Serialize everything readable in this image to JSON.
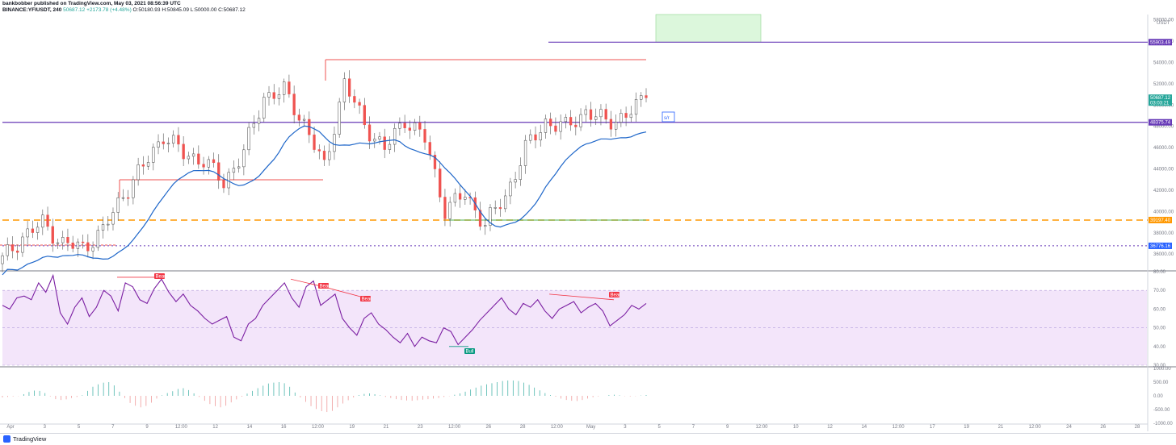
{
  "header": {
    "line1": "bankbobber published on TradingView.com, May 03, 2021 08:56:39 UTC",
    "symbol": "BINANCE:YFIUSDT, 240",
    "last": "50687.12",
    "change": "+2173.78 (+4.48%)",
    "o": "O:50180.93",
    "h": "H:50845.09",
    "l": "L:50000.00",
    "c": "C:50687.12"
  },
  "footer": {
    "brand": "TradingView"
  },
  "chart_data": {
    "type": "line",
    "series": [
      {
        "x": [
          "Apr 1",
          "Apr 2",
          "Apr 3",
          "Apr 4",
          "Apr 5",
          "Apr 6",
          "Apr 7",
          "Apr 8",
          "Apr 9",
          "Apr 10",
          "Apr 11",
          "Apr 12",
          "Apr 13",
          "Apr 14",
          "Apr 15",
          "Apr 16",
          "Apr 17",
          "Apr 18",
          "Apr 19",
          "Apr 20",
          "Apr 21",
          "Apr 22",
          "Apr 23",
          "Apr 24",
          "Apr 25",
          "Apr 26",
          "Apr 27",
          "Apr 28",
          "Apr 29",
          "Apr 30",
          "May 1",
          "May 2",
          "May 3"
        ],
        "close": [
          35500,
          37600,
          38900,
          37000,
          36600,
          38200,
          41600,
          44200,
          47200,
          45400,
          44800,
          42700,
          45600,
          50800,
          51300,
          48300,
          44100,
          52100,
          48200,
          45800,
          48700,
          46800,
          40200,
          41600,
          38800,
          41400,
          45900,
          48400,
          47900,
          49400,
          48400,
          49000,
          50687
        ]
      }
    ],
    "overlays": [
      {
        "type": "moving average",
        "color": "#1e66c9"
      },
      {
        "type": "horizontal",
        "value": 55903.49,
        "color": "#673ab7"
      },
      {
        "type": "horizontal",
        "value": 48375.74,
        "color": "#673ab7"
      },
      {
        "type": "horizontal",
        "value": 39197.4,
        "color": "#ff9800",
        "style": "dashed"
      },
      {
        "type": "horizontal",
        "value": 36776.16,
        "color": "#673ab7",
        "style": "dotted"
      },
      {
        "type": "box",
        "y": [
          55903.49,
          58500
        ],
        "x": [
          "May 4",
          "May 7"
        ],
        "color": "#c8f5c8"
      },
      {
        "type": "note",
        "text": "s/r"
      }
    ],
    "ylim": [
      34500,
      58500
    ],
    "price_ticks": [
      36000,
      38000,
      40000,
      42000,
      44000,
      46000,
      48000,
      50000,
      52000,
      54000,
      56000,
      58000
    ],
    "price_tick_labels": [
      "36000.00",
      "38000.00",
      "40000.00",
      "42000.00",
      "44000.00",
      "46000.00",
      "48000.00",
      "50000.00",
      "52000.00",
      "54000.00",
      "56000.00",
      "58000.00"
    ],
    "price_labels": [
      {
        "text": "55903.49",
        "value": 55903.49,
        "color": "#673ab7"
      },
      {
        "text": "50687.12",
        "value": 50687.12,
        "color": "#26a69a",
        "sub": "03:03:21"
      },
      {
        "text": "48375.74",
        "value": 48375.74,
        "color": "#673ab7"
      },
      {
        "text": "39197.40",
        "value": 39197.4,
        "color": "#ff9800"
      },
      {
        "text": "36776.16",
        "value": 36776.16,
        "color": "#2962ff"
      }
    ],
    "currency": "USDT",
    "x_ticks": [
      "Apr",
      "3",
      "5",
      "7",
      "9",
      "12:00",
      "12",
      "14",
      "16",
      "12:00",
      "19",
      "21",
      "23",
      "12:00",
      "26",
      "28",
      "12:00",
      "May",
      "3",
      "5",
      "7",
      "9",
      "12:00",
      "10",
      "12",
      "14",
      "12:00",
      "17",
      "19",
      "21",
      "12:00",
      "24",
      "26",
      "28"
    ],
    "rsi": {
      "values": [
        62,
        60,
        66,
        67,
        65,
        74,
        69,
        78,
        58,
        52,
        61,
        66,
        56,
        61,
        70,
        67,
        59,
        74,
        72,
        65,
        63,
        71,
        76,
        69,
        64,
        68,
        62,
        59,
        55,
        52,
        54,
        56,
        45,
        43,
        52,
        55,
        62,
        66,
        70,
        74,
        66,
        61,
        72,
        75,
        62,
        65,
        68,
        55,
        50,
        46,
        55,
        58,
        52,
        49,
        45,
        42,
        47,
        40,
        45,
        43,
        42,
        50,
        48,
        41,
        45,
        49,
        54,
        58,
        62,
        66,
        60,
        57,
        63,
        61,
        65,
        59,
        55,
        60,
        62,
        64,
        58,
        61,
        63,
        59,
        51,
        54,
        57,
        62,
        60,
        63
      ],
      "ylim": [
        30,
        80
      ],
      "band": [
        30,
        70
      ],
      "tick_labels": [
        "80.00",
        "70.00",
        "60.00",
        "50.00",
        "40.00",
        "30.00"
      ],
      "signals": [
        {
          "text": "Bear",
          "color": "#f23645"
        },
        {
          "text": "Bear",
          "color": "#f23645"
        },
        {
          "text": "Bear",
          "color": "#f23645"
        },
        {
          "text": "Bear",
          "color": "#f23645"
        },
        {
          "text": "Bull",
          "color": "#089981"
        }
      ]
    },
    "osc": {
      "values": [
        -60,
        -40,
        -20,
        -10,
        60,
        140,
        190,
        180,
        100,
        -20,
        -120,
        -150,
        -130,
        -80,
        -40,
        20,
        180,
        330,
        420,
        480,
        500,
        380,
        150,
        -80,
        -260,
        -360,
        -420,
        -370,
        -250,
        -100,
        20,
        100,
        170,
        250,
        280,
        210,
        90,
        -40,
        -180,
        -300,
        -380,
        -420,
        -360,
        -240,
        -130,
        -30,
        80,
        180,
        280,
        370,
        450,
        480,
        500,
        460,
        330,
        120,
        -60,
        -220,
        -380,
        -480,
        -560,
        -590,
        -550,
        -420,
        -280,
        -160,
        -60,
        30,
        70,
        90,
        60,
        20,
        -40,
        -80,
        -120,
        -150,
        -170,
        -180,
        -160,
        -140,
        -120,
        -100,
        -80,
        -40,
        -10,
        40,
        90,
        150,
        230,
        300,
        370,
        420,
        460,
        500,
        540,
        560,
        560,
        540,
        480,
        400,
        300,
        200,
        100,
        30,
        -30,
        -100,
        -150,
        -180,
        -190,
        -150,
        -100,
        -50,
        -20,
        0,
        30,
        40,
        20,
        -10,
        -20,
        -10,
        10,
        30
      ],
      "ylim": [
        -1000,
        1000
      ],
      "tick_labels": [
        "1000.00",
        "500.00",
        "0.00",
        "-500.00",
        "-1000.00"
      ]
    }
  }
}
